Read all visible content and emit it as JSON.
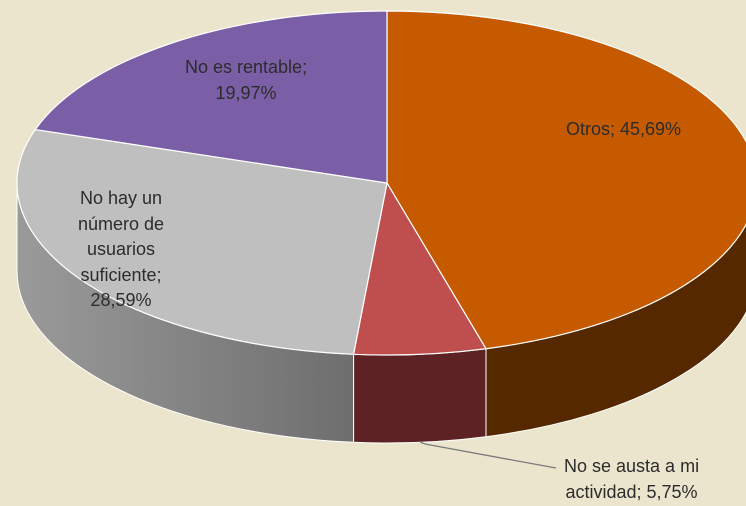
{
  "chart_data": {
    "type": "pie",
    "style": "3d",
    "series": [
      {
        "name": "",
        "slices": [
          {
            "label": "Otros",
            "value": 45.69,
            "display": "Otros; 45,69%",
            "color": "#c55a00",
            "side_color": "#552800"
          },
          {
            "label": "No se austa a mi actividad",
            "value": 5.75,
            "display": "No se austa a mi actividad; 5,75%",
            "color": "#bf4e4e",
            "side_color": "#5c2224"
          },
          {
            "label": "No hay un número de usuarios suficiente",
            "value": 28.59,
            "display": "No hay un número de usuarios suficiente; 28,59%",
            "color": "#bfbfbf",
            "side_color": "#8a8a8a"
          },
          {
            "label": "No es rentable",
            "value": 19.97,
            "display": "No es rentable; 19,97%",
            "color": "#7b5fa6",
            "side_color": "#4a3868"
          }
        ]
      }
    ],
    "labels": {
      "otros": "Otros; 45,69%",
      "no_rentable_1": "No es rentable;",
      "no_rentable_2": "19,97%",
      "no_hay_1": "No hay un",
      "no_hay_2": "número de",
      "no_hay_3": "usuarios",
      "no_hay_4": "suficiente;",
      "no_hay_5": "28,59%",
      "no_se_1": "No se austa a mi",
      "no_se_2": "actividad; 5,75%"
    },
    "title": "",
    "legend": "none"
  },
  "colors": {
    "background": "#ece5cd",
    "leader_line": "#7a7a7a",
    "label_text": "#2c2c2c"
  }
}
